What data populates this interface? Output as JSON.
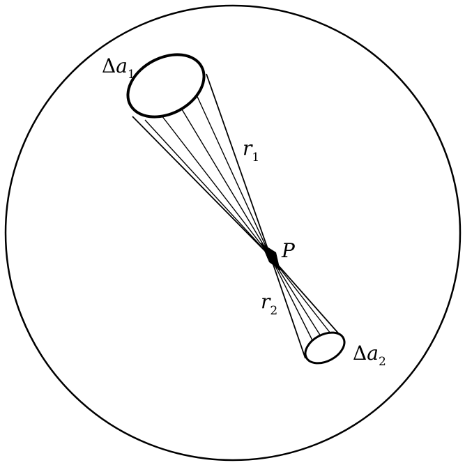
{
  "figure": {
    "point_label": "P",
    "area_1": {
      "symbol": "Δ",
      "var": "a",
      "sub": "1"
    },
    "area_2": {
      "symbol": "Δ",
      "var": "a",
      "sub": "2"
    },
    "distance_1": {
      "var": "r",
      "sub": "1"
    },
    "distance_2": {
      "var": "r",
      "sub": "2"
    }
  },
  "colors": {
    "ink": "#000000",
    "paper": "#ffffff"
  }
}
